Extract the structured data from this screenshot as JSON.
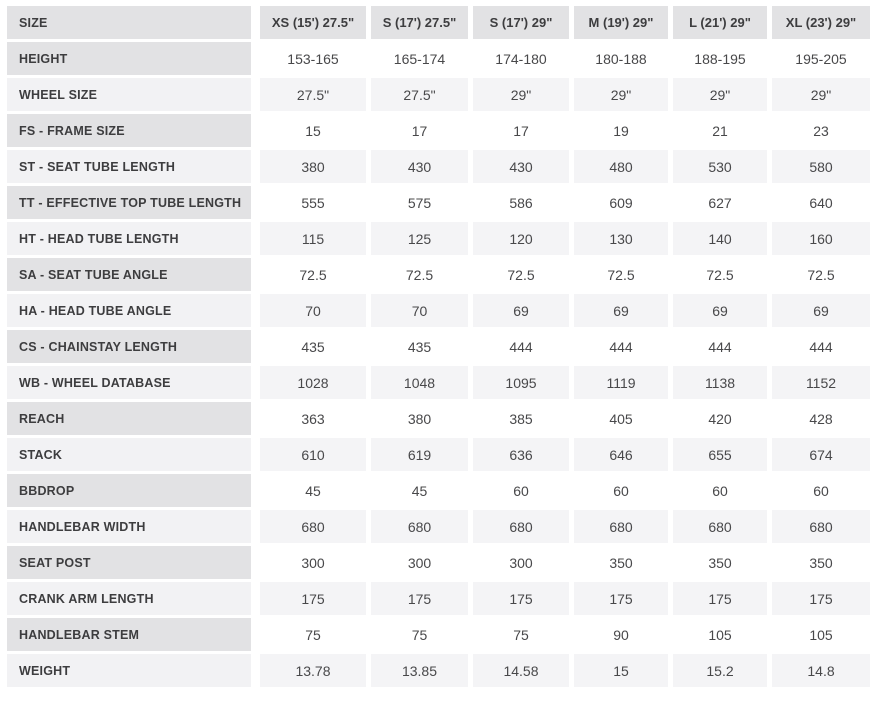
{
  "chart_data": {
    "type": "table",
    "title": "Bike size and geometry specification table",
    "columns": [
      "SIZE",
      "XS (15') 27.5\"",
      "S (17') 27.5\"",
      "S (17') 29\"",
      "M (19') 29\"",
      "L (21') 29\"",
      "XL (23') 29\""
    ],
    "rows": [
      {
        "label": "HEIGHT",
        "values": [
          "153-165",
          "165-174",
          "174-180",
          "180-188",
          "188-195",
          "195-205"
        ]
      },
      {
        "label": "WHEEL SIZE",
        "values": [
          "27.5\"",
          "27.5\"",
          "29\"",
          "29\"",
          "29\"",
          "29\""
        ]
      },
      {
        "label": "FS - FRAME SIZE",
        "values": [
          "15",
          "17",
          "17",
          "19",
          "21",
          "23"
        ]
      },
      {
        "label": "ST - SEAT TUBE LENGTH",
        "values": [
          "380",
          "430",
          "430",
          "480",
          "530",
          "580"
        ]
      },
      {
        "label": "TT - EFFECTIVE TOP TUBE LENGTH",
        "values": [
          "555",
          "575",
          "586",
          "609",
          "627",
          "640"
        ]
      },
      {
        "label": "HT - HEAD TUBE LENGTH",
        "values": [
          "115",
          "125",
          "120",
          "130",
          "140",
          "160"
        ]
      },
      {
        "label": "SA - SEAT TUBE ANGLE",
        "values": [
          "72.5",
          "72.5",
          "72.5",
          "72.5",
          "72.5",
          "72.5"
        ]
      },
      {
        "label": "HA - HEAD TUBE ANGLE",
        "values": [
          "70",
          "70",
          "69",
          "69",
          "69",
          "69"
        ]
      },
      {
        "label": "CS - CHAINSTAY LENGTH",
        "values": [
          "435",
          "435",
          "444",
          "444",
          "444",
          "444"
        ]
      },
      {
        "label": "WB - WHEEL DATABASE",
        "values": [
          "1028",
          "1048",
          "1095",
          "1119",
          "1138",
          "1152"
        ]
      },
      {
        "label": "REACH",
        "values": [
          "363",
          "380",
          "385",
          "405",
          "420",
          "428"
        ]
      },
      {
        "label": "STACK",
        "values": [
          "610",
          "619",
          "636",
          "646",
          "655",
          "674"
        ]
      },
      {
        "label": "BBDROP",
        "values": [
          "45",
          "45",
          "60",
          "60",
          "60",
          "60"
        ]
      },
      {
        "label": "HANDLEBAR WIDTH",
        "values": [
          "680",
          "680",
          "680",
          "680",
          "680",
          "680"
        ]
      },
      {
        "label": "SEAT POST",
        "values": [
          "300",
          "300",
          "300",
          "350",
          "350",
          "350"
        ]
      },
      {
        "label": "CRANK ARM LENGTH",
        "values": [
          "175",
          "175",
          "175",
          "175",
          "175",
          "175"
        ]
      },
      {
        "label": "HANDLEBAR STEM",
        "values": [
          "75",
          "75",
          "75",
          "90",
          "105",
          "105"
        ]
      },
      {
        "label": "WEIGHT",
        "values": [
          "13.78",
          "13.85",
          "14.58",
          "15",
          "15.2",
          "14.8"
        ]
      }
    ],
    "layout": {
      "grid": "off",
      "striping": "alternating rows",
      "header_position": "top row and left column"
    }
  },
  "colors": {
    "header_bg": "#e2e2e4",
    "odd_label_bg": "#e2e2e4",
    "odd_value_bg": "#ffffff",
    "even_label_bg": "#f2f2f4",
    "even_value_bg": "#f4f4f6",
    "gutter": "#ffffff",
    "label_text": "#3d3d3f",
    "value_text": "#48484a"
  }
}
